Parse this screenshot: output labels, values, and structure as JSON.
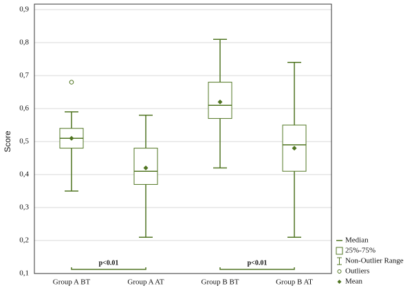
{
  "chart_data": {
    "type": "box",
    "y_label": "Score",
    "categories": [
      "Group A BT",
      "Group A AT",
      "Group B BT",
      "Group B AT"
    ],
    "boxes": [
      {
        "low": 0.35,
        "q1": 0.48,
        "median": 0.51,
        "q3": 0.54,
        "high": 0.59,
        "mean": 0.51,
        "outliers": [
          0.68
        ]
      },
      {
        "low": 0.21,
        "q1": 0.37,
        "median": 0.41,
        "q3": 0.48,
        "high": 0.58,
        "mean": 0.42,
        "outliers": []
      },
      {
        "low": 0.42,
        "q1": 0.57,
        "median": 0.61,
        "q3": 0.68,
        "high": 0.81,
        "mean": 0.62,
        "outliers": []
      },
      {
        "low": 0.21,
        "q1": 0.41,
        "median": 0.49,
        "q3": 0.55,
        "high": 0.74,
        "mean": 0.48,
        "outliers": []
      }
    ],
    "color": "#4f7420",
    "ylim": [
      0.1,
      0.9
    ],
    "yticks": [
      {
        "value": 0.1,
        "label": "0,1"
      },
      {
        "value": 0.2,
        "label": "0,2"
      },
      {
        "value": 0.3,
        "label": "0,3"
      },
      {
        "value": 0.4,
        "label": "0,4"
      },
      {
        "value": 0.5,
        "label": "0,5"
      },
      {
        "value": 0.6,
        "label": "0,6"
      },
      {
        "value": 0.7,
        "label": "0,7"
      },
      {
        "value": 0.8,
        "label": "0,8"
      },
      {
        "value": 0.9,
        "label": "0,9"
      }
    ],
    "grid": true,
    "annotations": [
      "p<0.01",
      "p<0.01"
    ],
    "legend": [
      "Median",
      "25%-75%",
      "Non-Outlier Range",
      "Outliers",
      "Mean"
    ],
    "legend_position": "lower right"
  }
}
